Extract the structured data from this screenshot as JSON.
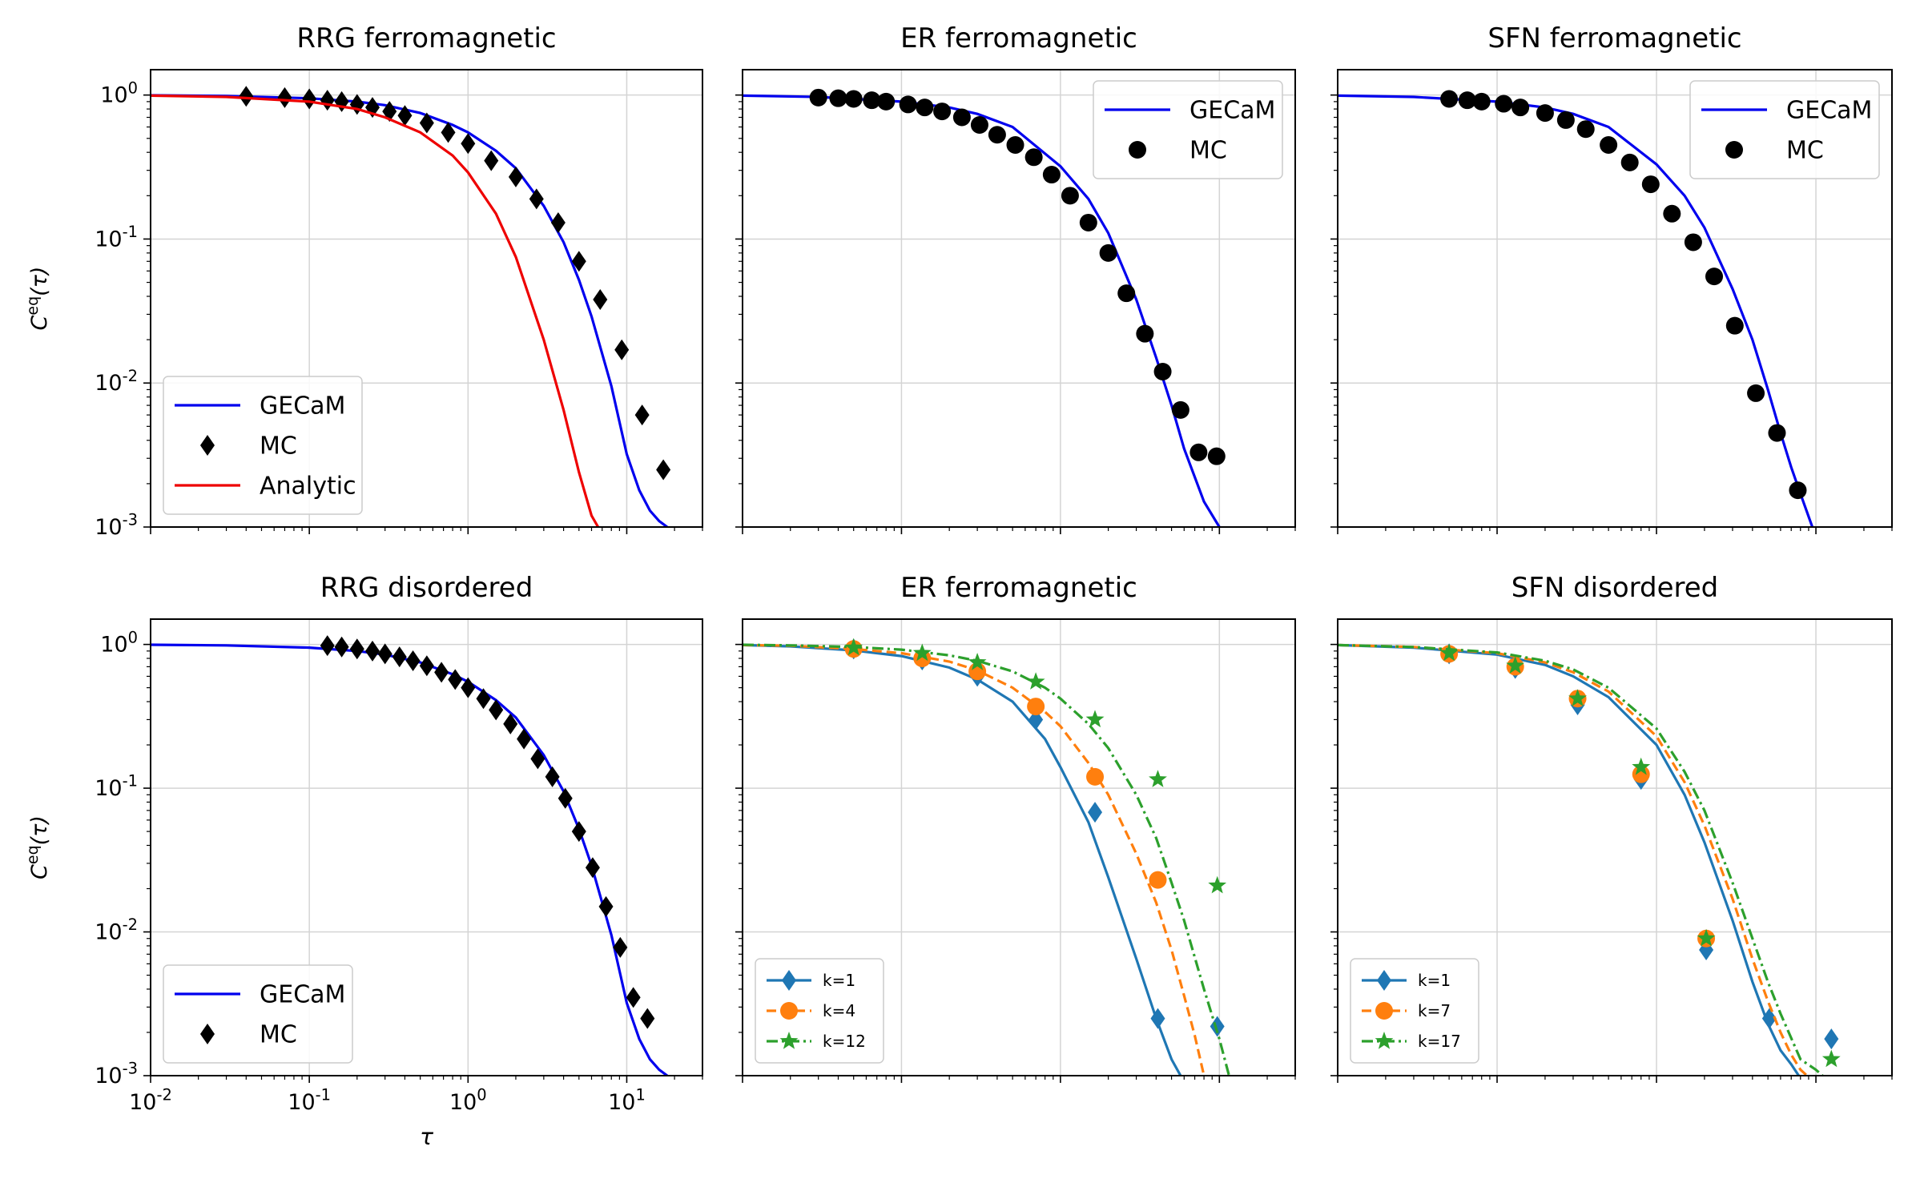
{
  "figure": {
    "ylabel": "C^eq(τ)",
    "xlabel": "τ",
    "x_tick_labels": [
      "10^-2",
      "10^-1",
      "10^0",
      "10^1"
    ],
    "y_tick_labels": [
      "10^0",
      "10^-1",
      "10^-2",
      "10^-3"
    ]
  },
  "chart_data": [
    {
      "type": "line",
      "title": "RRG ferromagnetic",
      "xscale": "log",
      "yscale": "log",
      "xlim": [
        0.01,
        30
      ],
      "ylim": [
        0.001,
        1.5
      ],
      "grid": true,
      "legend_position": "lower-left",
      "show_x_ticklabels": false,
      "show_y_ticklabels": true,
      "series": [
        {
          "name": "GECaM",
          "kind": "line",
          "color": "#0000ee",
          "style": "solid",
          "x": [
            0.01,
            0.03,
            0.1,
            0.2,
            0.3,
            0.5,
            0.8,
            1.0,
            1.5,
            2.0,
            3.0,
            4.0,
            5.0,
            6.0,
            8.0,
            10.0,
            12.0,
            14.0,
            16.0,
            18.0
          ],
          "y": [
            0.995,
            0.985,
            0.95,
            0.9,
            0.85,
            0.75,
            0.62,
            0.55,
            0.41,
            0.31,
            0.17,
            0.095,
            0.052,
            0.029,
            0.0095,
            0.0032,
            0.0018,
            0.0013,
            0.0011,
            0.001
          ]
        },
        {
          "name": "MC",
          "kind": "scatter",
          "color": "#000000",
          "marker": "diamond",
          "x": [
            0.04,
            0.07,
            0.1,
            0.13,
            0.16,
            0.2,
            0.25,
            0.32,
            0.4,
            0.55,
            0.75,
            1.0,
            1.4,
            2.0,
            2.7,
            3.7,
            5.0,
            6.8,
            9.3,
            12.5,
            17.0
          ],
          "y": [
            0.98,
            0.96,
            0.94,
            0.92,
            0.9,
            0.86,
            0.82,
            0.77,
            0.72,
            0.64,
            0.55,
            0.46,
            0.35,
            0.27,
            0.19,
            0.13,
            0.07,
            0.038,
            0.017,
            0.006,
            0.0025
          ]
        },
        {
          "name": "Analytic",
          "kind": "line",
          "color": "#ee0000",
          "style": "solid",
          "x": [
            0.01,
            0.03,
            0.1,
            0.2,
            0.3,
            0.5,
            0.8,
            1.0,
            1.5,
            2.0,
            3.0,
            4.0,
            5.0,
            6.0,
            6.6
          ],
          "y": [
            0.99,
            0.97,
            0.9,
            0.8,
            0.7,
            0.55,
            0.38,
            0.29,
            0.15,
            0.075,
            0.02,
            0.0065,
            0.0024,
            0.0012,
            0.001
          ]
        }
      ]
    },
    {
      "type": "scatter",
      "title": "ER ferromagnetic",
      "xscale": "log",
      "yscale": "log",
      "xlim": [
        0.01,
        30
      ],
      "ylim": [
        0.001,
        1.5
      ],
      "grid": true,
      "legend_position": "upper-right",
      "show_x_ticklabels": false,
      "show_y_ticklabels": false,
      "series": [
        {
          "name": "GECaM",
          "kind": "line",
          "color": "#0000ee",
          "style": "solid",
          "x": [
            0.01,
            0.03,
            0.1,
            0.2,
            0.3,
            0.5,
            1.0,
            1.5,
            2.0,
            3.0,
            4.0,
            5.0,
            6.0,
            8.0,
            10.0
          ],
          "y": [
            0.99,
            0.97,
            0.9,
            0.82,
            0.74,
            0.6,
            0.32,
            0.19,
            0.11,
            0.038,
            0.015,
            0.007,
            0.0035,
            0.0015,
            0.001
          ]
        },
        {
          "name": "MC",
          "kind": "scatter",
          "color": "#000000",
          "marker": "circle",
          "x": [
            0.03,
            0.04,
            0.05,
            0.065,
            0.08,
            0.11,
            0.14,
            0.18,
            0.24,
            0.31,
            0.4,
            0.52,
            0.68,
            0.88,
            1.15,
            1.5,
            2.0,
            2.6,
            3.4,
            4.4,
            5.7,
            7.4,
            9.6
          ],
          "y": [
            0.96,
            0.95,
            0.94,
            0.92,
            0.9,
            0.86,
            0.82,
            0.77,
            0.7,
            0.62,
            0.53,
            0.45,
            0.37,
            0.28,
            0.2,
            0.13,
            0.08,
            0.042,
            0.022,
            0.012,
            0.0065,
            0.0033,
            0.0031
          ]
        }
      ]
    },
    {
      "type": "scatter",
      "title": "SFN ferromagnetic",
      "xscale": "log",
      "yscale": "log",
      "xlim": [
        0.01,
        30
      ],
      "ylim": [
        0.001,
        1.5
      ],
      "grid": true,
      "legend_position": "upper-right",
      "show_x_ticklabels": false,
      "show_y_ticklabels": false,
      "series": [
        {
          "name": "GECaM",
          "kind": "line",
          "color": "#0000ee",
          "style": "solid",
          "x": [
            0.01,
            0.03,
            0.1,
            0.2,
            0.3,
            0.5,
            1.0,
            1.5,
            2.0,
            3.0,
            4.0,
            5.0,
            6.0,
            7.0,
            8.0,
            9.5
          ],
          "y": [
            0.99,
            0.97,
            0.9,
            0.82,
            0.74,
            0.6,
            0.33,
            0.2,
            0.12,
            0.045,
            0.02,
            0.009,
            0.0045,
            0.0026,
            0.0017,
            0.001
          ]
        },
        {
          "name": "MC",
          "kind": "scatter",
          "color": "#000000",
          "marker": "circle",
          "x": [
            0.05,
            0.065,
            0.08,
            0.11,
            0.14,
            0.2,
            0.27,
            0.36,
            0.5,
            0.68,
            0.92,
            1.25,
            1.7,
            2.3,
            3.1,
            4.2,
            5.7,
            7.7
          ],
          "y": [
            0.94,
            0.92,
            0.9,
            0.87,
            0.82,
            0.75,
            0.67,
            0.58,
            0.45,
            0.34,
            0.24,
            0.15,
            0.095,
            0.055,
            0.025,
            0.0085,
            0.0045,
            0.0018
          ]
        }
      ]
    },
    {
      "type": "line",
      "title": "RRG disordered",
      "xscale": "log",
      "yscale": "log",
      "xlim": [
        0.01,
        30
      ],
      "ylim": [
        0.001,
        1.5
      ],
      "grid": true,
      "legend_position": "lower-left",
      "show_x_ticklabels": true,
      "show_y_ticklabels": true,
      "series": [
        {
          "name": "GECaM",
          "kind": "line",
          "color": "#0000ee",
          "style": "solid",
          "x": [
            0.01,
            0.03,
            0.1,
            0.2,
            0.3,
            0.5,
            0.8,
            1.0,
            1.5,
            2.0,
            3.0,
            4.0,
            5.0,
            6.0,
            8.0,
            10.0,
            12.0,
            14.0,
            16.0,
            18.0
          ],
          "y": [
            0.995,
            0.985,
            0.95,
            0.9,
            0.85,
            0.75,
            0.62,
            0.55,
            0.41,
            0.31,
            0.17,
            0.095,
            0.052,
            0.029,
            0.0095,
            0.0032,
            0.0018,
            0.0013,
            0.0011,
            0.001
          ]
        },
        {
          "name": "MC",
          "kind": "scatter",
          "color": "#000000",
          "marker": "diamond",
          "x": [
            0.13,
            0.16,
            0.2,
            0.25,
            0.3,
            0.37,
            0.45,
            0.55,
            0.68,
            0.83,
            1.0,
            1.25,
            1.5,
            1.85,
            2.25,
            2.75,
            3.4,
            4.1,
            5.0,
            6.1,
            7.4,
            9.1,
            11.0,
            13.5
          ],
          "y": [
            0.98,
            0.96,
            0.93,
            0.9,
            0.86,
            0.82,
            0.77,
            0.71,
            0.64,
            0.57,
            0.5,
            0.42,
            0.35,
            0.28,
            0.22,
            0.16,
            0.12,
            0.085,
            0.05,
            0.028,
            0.015,
            0.0078,
            0.0035,
            0.0025
          ]
        }
      ]
    },
    {
      "type": "line",
      "title": "ER ferromagnetic",
      "xscale": "log",
      "yscale": "log",
      "xlim": [
        0.01,
        30
      ],
      "ylim": [
        0.001,
        1.5
      ],
      "grid": true,
      "legend_position": "lower-left",
      "show_x_ticklabels": false,
      "show_y_ticklabels": false,
      "series": [
        {
          "name": "k=1",
          "kind": "line+marker",
          "color": "#1f77b4",
          "style": "solid",
          "marker": "diamond",
          "x": [
            0.01,
            0.02,
            0.05,
            0.1,
            0.2,
            0.3,
            0.5,
            0.8,
            1.0,
            1.5,
            2.0,
            3.0,
            4.0,
            5.0,
            5.7
          ],
          "y": [
            0.99,
            0.97,
            0.91,
            0.83,
            0.69,
            0.57,
            0.4,
            0.22,
            0.14,
            0.058,
            0.024,
            0.0065,
            0.0025,
            0.0013,
            0.001
          ],
          "marker_x": [
            0.05,
            0.135,
            0.3,
            0.7,
            1.65,
            4.1,
            9.7
          ],
          "marker_y": [
            0.93,
            0.78,
            0.6,
            0.3,
            0.068,
            0.0025,
            0.0022
          ]
        },
        {
          "name": "k=4",
          "kind": "line+marker",
          "color": "#ff7f0e",
          "style": "dashed",
          "marker": "circle",
          "x": [
            0.01,
            0.02,
            0.05,
            0.1,
            0.2,
            0.3,
            0.5,
            0.8,
            1.0,
            1.5,
            2.0,
            3.0,
            4.0,
            5.0,
            6.0,
            7.0,
            8.0
          ],
          "y": [
            0.99,
            0.98,
            0.93,
            0.87,
            0.76,
            0.66,
            0.5,
            0.34,
            0.27,
            0.15,
            0.09,
            0.035,
            0.016,
            0.0075,
            0.0036,
            0.0019,
            0.001
          ],
          "marker_x": [
            0.05,
            0.135,
            0.3,
            0.7,
            1.65,
            4.1
          ],
          "marker_y": [
            0.93,
            0.8,
            0.65,
            0.37,
            0.12,
            0.023
          ]
        },
        {
          "name": "k=12",
          "kind": "line+marker",
          "color": "#2ca02c",
          "style": "dashdot",
          "marker": "star",
          "x": [
            0.01,
            0.02,
            0.05,
            0.1,
            0.2,
            0.3,
            0.5,
            0.8,
            1.0,
            1.5,
            2.0,
            3.0,
            4.0,
            5.0,
            6.0,
            8.0,
            10.0,
            11.5
          ],
          "y": [
            0.995,
            0.985,
            0.96,
            0.92,
            0.84,
            0.77,
            0.65,
            0.5,
            0.42,
            0.28,
            0.19,
            0.09,
            0.045,
            0.022,
            0.012,
            0.004,
            0.0018,
            0.001
          ],
          "marker_x": [
            0.05,
            0.135,
            0.3,
            0.7,
            1.65,
            4.1,
            9.7
          ],
          "marker_y": [
            0.95,
            0.87,
            0.75,
            0.55,
            0.3,
            0.115,
            0.021
          ]
        }
      ]
    },
    {
      "type": "line",
      "title": "SFN disordered",
      "xscale": "log",
      "yscale": "log",
      "xlim": [
        0.01,
        30
      ],
      "ylim": [
        0.001,
        1.5
      ],
      "grid": true,
      "legend_position": "lower-left",
      "show_x_ticklabels": false,
      "show_y_ticklabels": false,
      "series": [
        {
          "name": "k=1",
          "kind": "line+marker",
          "color": "#1f77b4",
          "style": "solid",
          "marker": "diamond",
          "x": [
            0.01,
            0.03,
            0.1,
            0.2,
            0.3,
            0.5,
            1.0,
            1.5,
            2.0,
            3.0,
            4.0,
            5.0,
            6.0,
            7.0,
            7.8
          ],
          "y": [
            0.99,
            0.95,
            0.85,
            0.72,
            0.6,
            0.43,
            0.2,
            0.09,
            0.042,
            0.012,
            0.0045,
            0.0023,
            0.0015,
            0.0012,
            0.001
          ],
          "marker_x": [
            0.05,
            0.13,
            0.32,
            0.8,
            2.05,
            5.1,
            12.5
          ],
          "marker_y": [
            0.86,
            0.68,
            0.38,
            0.115,
            0.0075,
            0.0025,
            0.0018
          ]
        },
        {
          "name": "k=7",
          "kind": "line+marker",
          "color": "#ff7f0e",
          "style": "dashed",
          "marker": "circle",
          "x": [
            0.01,
            0.03,
            0.1,
            0.2,
            0.3,
            0.5,
            1.0,
            1.5,
            2.0,
            3.0,
            4.0,
            5.0,
            6.0,
            7.0,
            8.0,
            8.8
          ],
          "y": [
            0.99,
            0.96,
            0.87,
            0.75,
            0.64,
            0.47,
            0.23,
            0.11,
            0.055,
            0.017,
            0.0065,
            0.0033,
            0.002,
            0.0014,
            0.0011,
            0.001
          ],
          "marker_x": [
            0.05,
            0.13,
            0.32,
            0.8,
            2.05
          ],
          "marker_y": [
            0.86,
            0.7,
            0.42,
            0.125,
            0.009
          ]
        },
        {
          "name": "k=17",
          "kind": "line+marker",
          "color": "#2ca02c",
          "style": "dashdot",
          "marker": "star",
          "x": [
            0.01,
            0.03,
            0.1,
            0.2,
            0.3,
            0.5,
            1.0,
            1.5,
            2.0,
            3.0,
            4.0,
            5.0,
            6.0,
            8.0,
            10.0,
            11.0
          ],
          "y": [
            0.99,
            0.96,
            0.88,
            0.77,
            0.67,
            0.5,
            0.26,
            0.13,
            0.07,
            0.022,
            0.009,
            0.0045,
            0.0027,
            0.0013,
            0.0011,
            0.001
          ],
          "marker_x": [
            0.05,
            0.13,
            0.32,
            0.8,
            2.05,
            12.5
          ],
          "marker_y": [
            0.87,
            0.71,
            0.42,
            0.14,
            0.009,
            0.0013
          ]
        }
      ]
    }
  ]
}
